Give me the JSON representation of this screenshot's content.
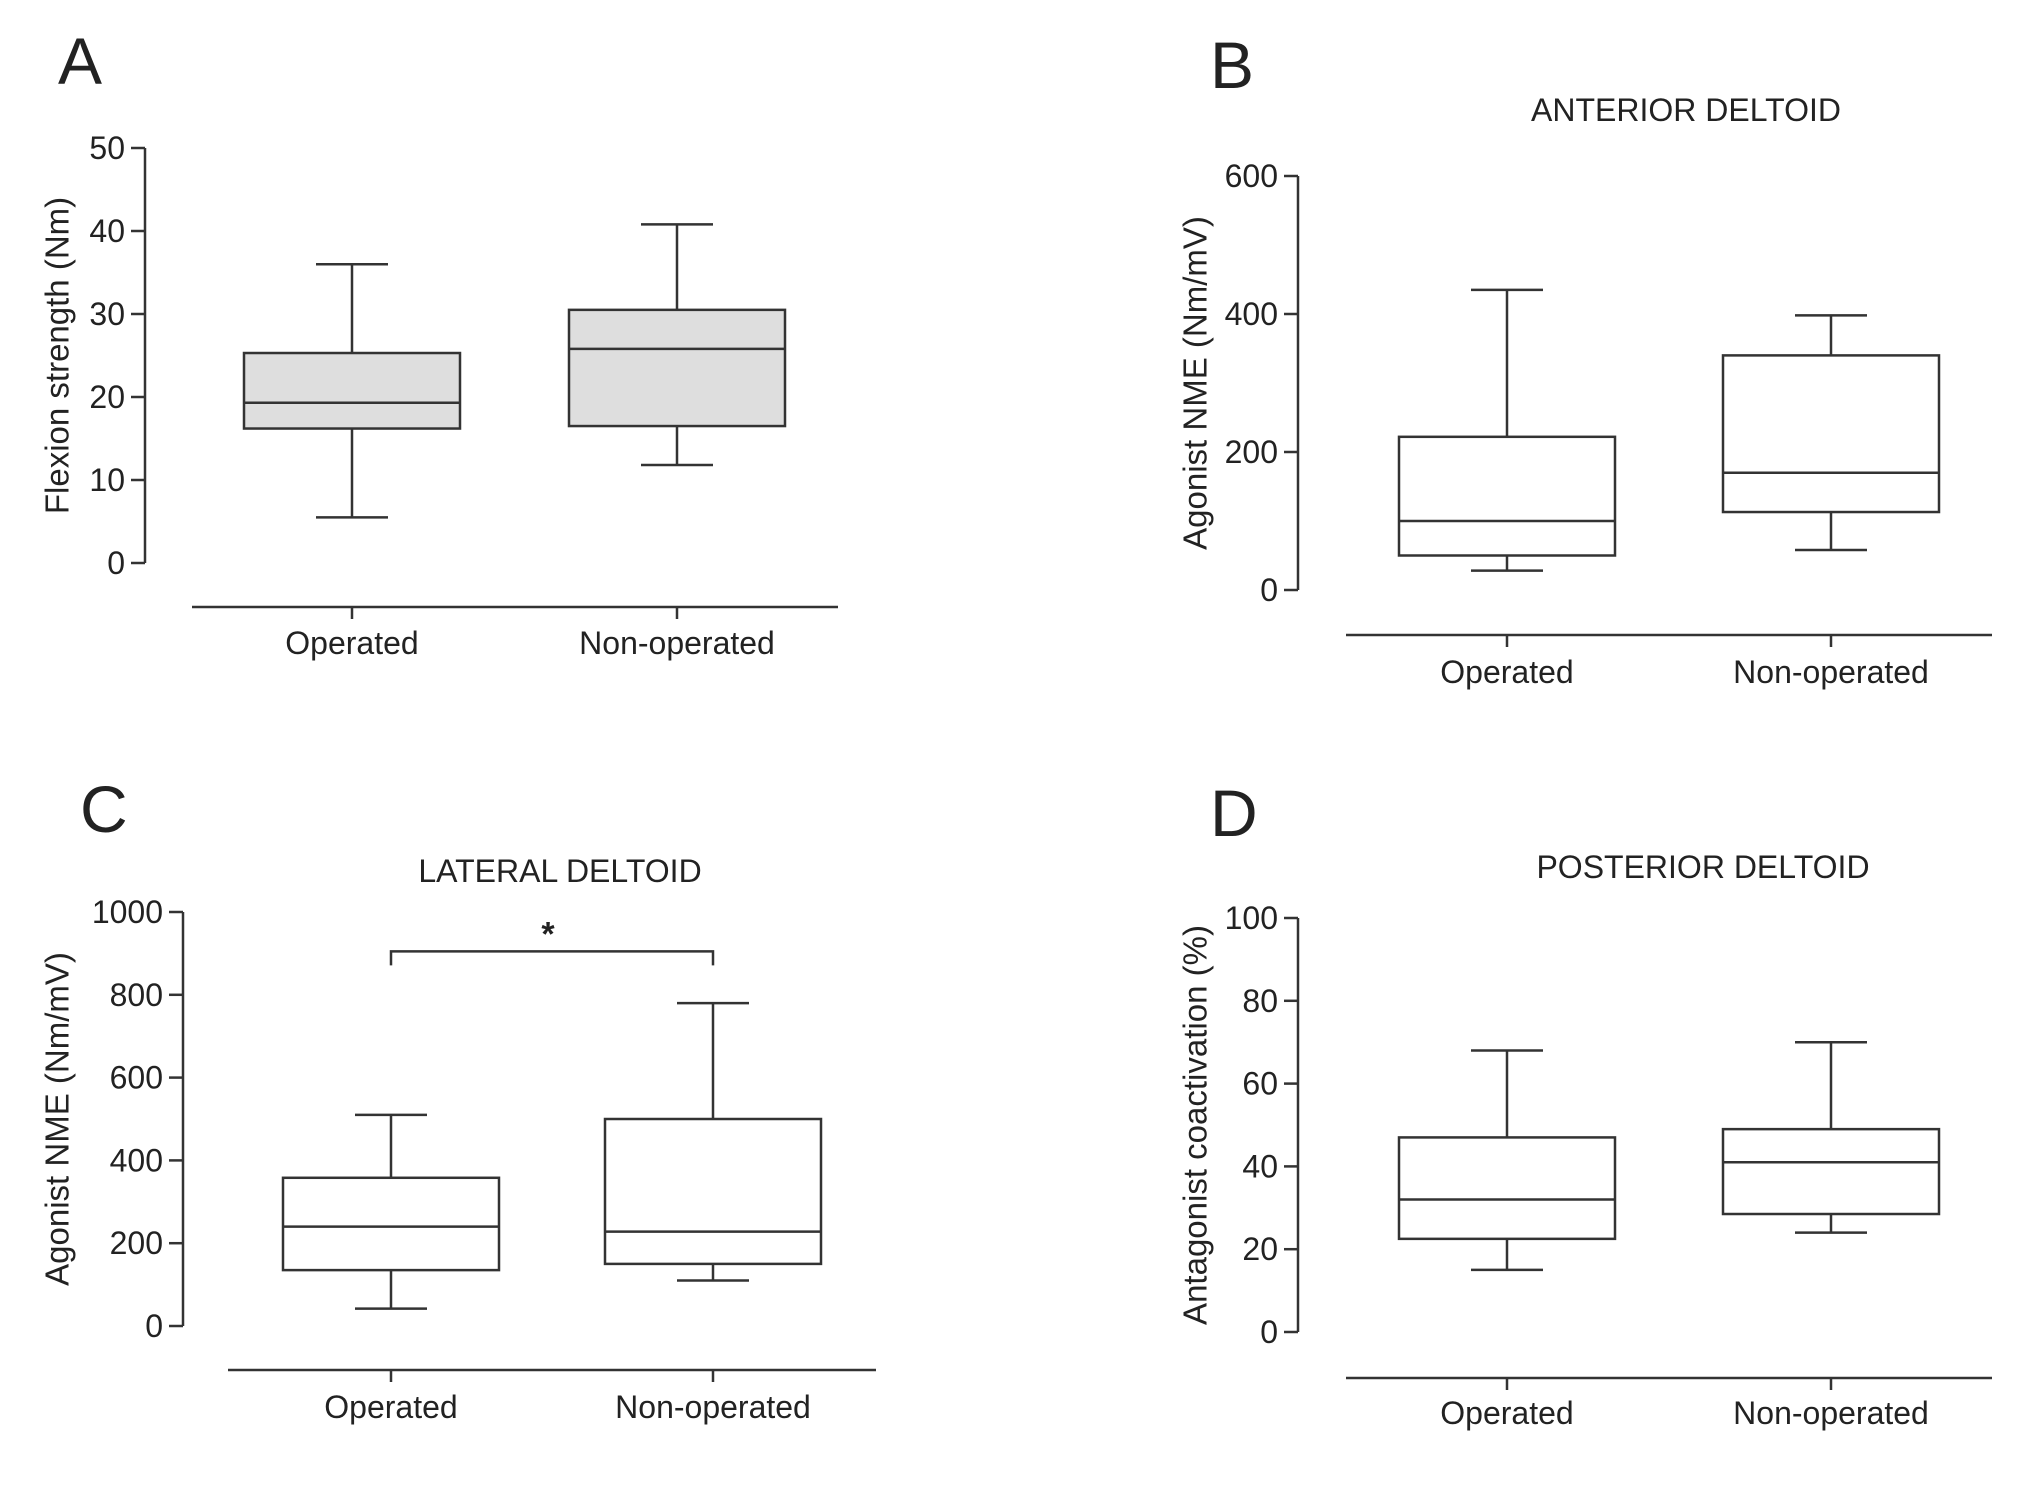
{
  "chart_data": [
    {
      "panel": "A",
      "type": "boxplot",
      "title": "",
      "ylabel": "Flexion strength (Nm)",
      "xlabel": "",
      "ylim": [
        0,
        50
      ],
      "yticks": [
        0,
        10,
        20,
        30,
        40,
        50
      ],
      "categories": [
        "Operated",
        "Non-operated"
      ],
      "fill": "#dedede",
      "boxes": [
        {
          "name": "Operated",
          "min": 5.5,
          "q1": 16.2,
          "median": 19.3,
          "q3": 25.3,
          "max": 36.0
        },
        {
          "name": "Non-operated",
          "min": 11.8,
          "q1": 16.5,
          "median": 25.8,
          "q3": 30.5,
          "max": 40.8
        }
      ],
      "significance": null
    },
    {
      "panel": "B",
      "type": "boxplot",
      "title": "ANTERIOR DELTOID",
      "ylabel": "Agonist NME (Nm/mV)",
      "xlabel": "",
      "ylim": [
        0,
        600
      ],
      "yticks": [
        0,
        200,
        400,
        600
      ],
      "categories": [
        "Operated",
        "Non-operated"
      ],
      "fill": "#ffffff",
      "boxes": [
        {
          "name": "Operated",
          "min": 28,
          "q1": 50,
          "median": 100,
          "q3": 222,
          "max": 435
        },
        {
          "name": "Non-operated",
          "min": 58,
          "q1": 113,
          "median": 170,
          "q3": 340,
          "max": 398
        }
      ],
      "significance": null
    },
    {
      "panel": "C",
      "type": "boxplot",
      "title": "LATERAL DELTOID",
      "ylabel": "Agonist NME (Nm/mV)",
      "xlabel": "",
      "ylim": [
        0,
        1000
      ],
      "yticks": [
        0,
        200,
        400,
        600,
        800,
        1000
      ],
      "categories": [
        "Operated",
        "Non-operated"
      ],
      "fill": "#ffffff",
      "boxes": [
        {
          "name": "Operated",
          "min": 42,
          "q1": 135,
          "median": 240,
          "q3": 358,
          "max": 510
        },
        {
          "name": "Non-operated",
          "min": 110,
          "q1": 150,
          "median": 228,
          "q3": 500,
          "max": 780
        }
      ],
      "significance": {
        "label": "*",
        "y": 905
      }
    },
    {
      "panel": "D",
      "type": "boxplot",
      "title": "POSTERIOR DELTOID",
      "ylabel": "Antagonist coactivation (%)",
      "xlabel": "",
      "ylim": [
        0,
        100
      ],
      "yticks": [
        0,
        20,
        40,
        60,
        80,
        100
      ],
      "categories": [
        "Operated",
        "Non-operated"
      ],
      "fill": "#ffffff",
      "boxes": [
        {
          "name": "Operated",
          "min": 15,
          "q1": 22.5,
          "median": 32,
          "q3": 47,
          "max": 68
        },
        {
          "name": "Non-operated",
          "min": 24,
          "q1": 28.5,
          "median": 41,
          "q3": 49,
          "max": 70
        }
      ],
      "significance": null
    }
  ]
}
